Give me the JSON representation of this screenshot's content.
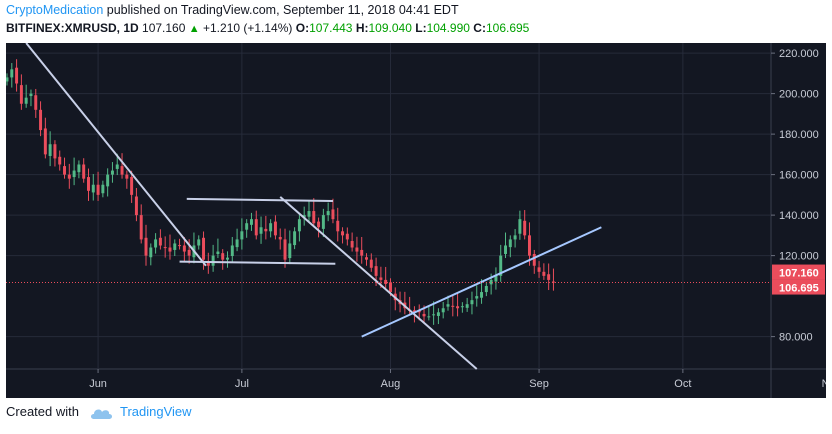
{
  "header": {
    "author": "CryptoMedication",
    "published_text": "published on TradingView.com, September 11, 2018 04:41 EDT",
    "symbol": "BITFINEX:XMRUSD, 1D",
    "last": "107.160",
    "change": "+1.210 (+1.14%)",
    "o_label": "O:",
    "o_value": "107.443",
    "h_label": "H:",
    "h_value": "109.040",
    "l_label": "L:",
    "l_value": "104.990",
    "c_label": "C:",
    "c_value": "106.695"
  },
  "footer": {
    "created_with": "Created with",
    "brand": "TradingView"
  },
  "colors": {
    "background": "#131722",
    "up": "#53b987",
    "down": "#eb4d5c",
    "trendline": "#c8d0e8",
    "support": "#a6c8ff",
    "price_tag": "#eb4d5c"
  },
  "chart_data": {
    "type": "candlestick",
    "x_ticks": [
      "Jun",
      "Jul",
      "Aug",
      "Sep",
      "Oct",
      "Nov"
    ],
    "y_ticks": [
      "80.000",
      "120.000",
      "140.000",
      "160.000",
      "180.000",
      "200.000",
      "220.000"
    ],
    "ylim": [
      64,
      225
    ],
    "price_labels": [
      "107.160",
      "106.695"
    ],
    "current_price": 106.695,
    "date_range": [
      "2018-05-13",
      "2018-09-11"
    ],
    "closes": [
      208,
      212,
      205,
      195,
      198,
      200,
      192,
      182,
      170,
      175,
      168,
      165,
      160,
      158,
      162,
      165,
      158,
      152,
      155,
      150,
      155,
      160,
      162,
      165,
      160,
      158,
      150,
      140,
      128,
      120,
      124,
      128,
      125,
      124,
      122,
      126,
      125,
      122,
      120,
      125,
      128,
      118,
      115,
      120,
      122,
      118,
      119,
      125,
      128,
      132,
      136,
      138,
      130,
      134,
      132,
      136,
      130,
      128,
      118,
      126,
      132,
      138,
      140,
      142,
      136,
      134,
      140,
      142,
      138,
      132,
      130,
      128,
      124,
      122,
      120,
      118,
      114,
      110,
      108,
      106,
      102,
      98,
      96,
      94,
      93,
      92,
      92,
      90,
      90,
      91,
      92,
      94,
      96,
      95,
      94,
      95,
      96,
      98,
      100,
      102,
      105,
      108,
      110,
      120,
      125,
      128,
      130,
      138,
      130,
      120,
      115,
      112,
      110,
      108,
      106.695
    ]
  }
}
